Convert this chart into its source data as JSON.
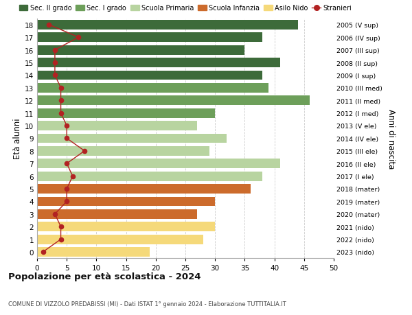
{
  "ages": [
    18,
    17,
    16,
    15,
    14,
    13,
    12,
    11,
    10,
    9,
    8,
    7,
    6,
    5,
    4,
    3,
    2,
    1,
    0
  ],
  "bar_values": [
    44,
    38,
    35,
    41,
    38,
    39,
    46,
    30,
    27,
    32,
    29,
    41,
    38,
    36,
    30,
    27,
    30,
    28,
    19
  ],
  "stranieri": [
    2,
    7,
    3,
    3,
    3,
    4,
    4,
    4,
    5,
    5,
    8,
    5,
    6,
    5,
    5,
    3,
    4,
    4,
    1
  ],
  "right_labels": [
    "2005 (V sup)",
    "2006 (IV sup)",
    "2007 (III sup)",
    "2008 (II sup)",
    "2009 (I sup)",
    "2010 (III med)",
    "2011 (II med)",
    "2012 (I med)",
    "2013 (V ele)",
    "2014 (IV ele)",
    "2015 (III ele)",
    "2016 (II ele)",
    "2017 (I ele)",
    "2018 (mater)",
    "2019 (mater)",
    "2020 (mater)",
    "2021 (nido)",
    "2022 (nido)",
    "2023 (nido)"
  ],
  "bar_colors": [
    "#3d6b3a",
    "#3d6b3a",
    "#3d6b3a",
    "#3d6b3a",
    "#3d6b3a",
    "#6d9f5a",
    "#6d9f5a",
    "#6d9f5a",
    "#b8d4a0",
    "#b8d4a0",
    "#b8d4a0",
    "#b8d4a0",
    "#b8d4a0",
    "#cc6b2c",
    "#cc6b2c",
    "#cc6b2c",
    "#f5d97a",
    "#f5d97a",
    "#f5d97a"
  ],
  "legend_entries": [
    {
      "label": "Sec. II grado",
      "color": "#3d6b3a",
      "type": "patch"
    },
    {
      "label": "Sec. I grado",
      "color": "#6d9f5a",
      "type": "patch"
    },
    {
      "label": "Scuola Primaria",
      "color": "#b8d4a0",
      "type": "patch"
    },
    {
      "label": "Scuola Infanzia",
      "color": "#cc6b2c",
      "type": "patch"
    },
    {
      "label": "Asilo Nido",
      "color": "#f5d97a",
      "type": "patch"
    },
    {
      "label": "Stranieri",
      "color": "#b22222",
      "type": "line"
    }
  ],
  "ylabel_left": "Età alunni",
  "ylabel_right": "Anni di nascita",
  "title": "Popolazione per età scolastica - 2024",
  "subtitle": "COMUNE DI VIZZOLO PREDABISSI (MI) - Dati ISTAT 1° gennaio 2024 - Elaborazione TUTTITALIA.IT",
  "xlim": [
    0,
    50
  ],
  "xticks": [
    0,
    5,
    10,
    15,
    20,
    25,
    30,
    35,
    40,
    45,
    50
  ],
  "bg_color": "#ffffff",
  "bar_height": 0.75,
  "stranieri_color": "#b22222"
}
